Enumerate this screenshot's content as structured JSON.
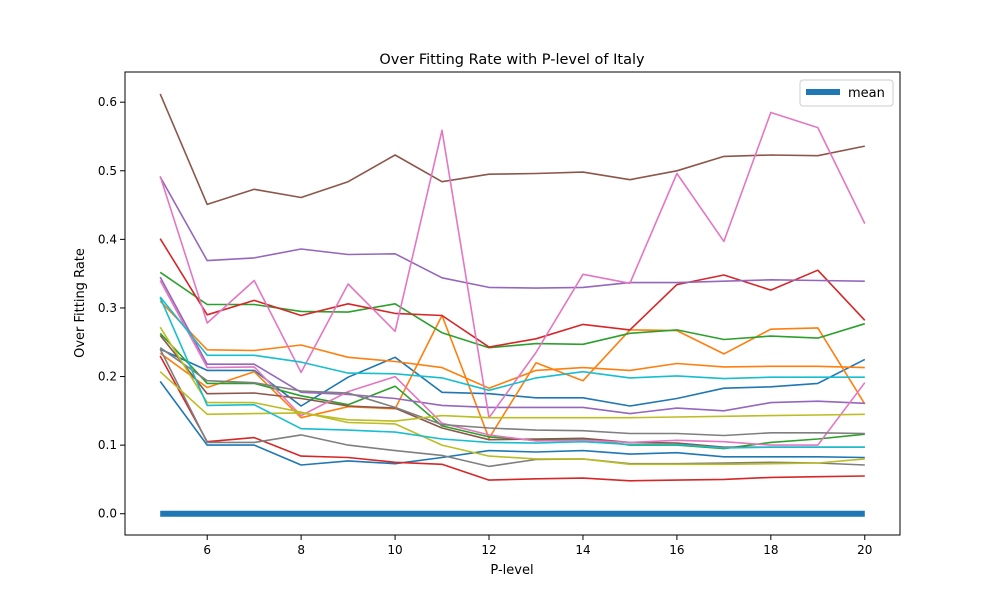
{
  "chart_data": {
    "type": "line",
    "title": "Over Fitting Rate with P-level of Italy",
    "xlabel": "P-level",
    "ylabel": "Over Fitting Rate",
    "xlim": [
      4.25,
      20.75
    ],
    "ylim": [
      -0.031,
      0.644
    ],
    "xticks": [
      6,
      8,
      10,
      12,
      14,
      16,
      18,
      20
    ],
    "yticks": [
      0.0,
      0.1,
      0.2,
      0.3,
      0.4,
      0.5,
      0.6
    ],
    "ytick_labels": [
      "0.0",
      "0.1",
      "0.2",
      "0.3",
      "0.4",
      "0.5",
      "0.6"
    ],
    "grid": false,
    "legend_position": "top-right",
    "x": [
      5,
      6,
      7,
      8,
      9,
      10,
      11,
      12,
      13,
      14,
      15,
      16,
      17,
      18,
      19,
      20
    ],
    "series": [
      {
        "color": "#1f77b4",
        "values": [
          0.24,
          0.209,
          0.209,
          0.157,
          0.199,
          0.228,
          0.177,
          0.175,
          0.169,
          0.169,
          0.157,
          0.168,
          0.183,
          0.185,
          0.19,
          0.225
        ]
      },
      {
        "color": "#1f77b4",
        "values": [
          0.193,
          0.1,
          0.1,
          0.071,
          0.077,
          0.073,
          0.082,
          0.092,
          0.09,
          0.092,
          0.087,
          0.089,
          0.083,
          0.083,
          0.083,
          0.082
        ]
      },
      {
        "color": "#ff7f0e",
        "values": [
          0.31,
          0.239,
          0.238,
          0.246,
          0.228,
          0.222,
          0.213,
          0.183,
          0.209,
          0.213,
          0.209,
          0.219,
          0.214,
          0.215,
          0.215,
          0.213
        ]
      },
      {
        "color": "#ff7f0e",
        "values": [
          0.234,
          0.184,
          0.207,
          0.14,
          0.156,
          0.153,
          0.289,
          0.11,
          0.22,
          0.194,
          0.268,
          0.267,
          0.233,
          0.269,
          0.271,
          0.16
        ]
      },
      {
        "color": "#2ca02c",
        "values": [
          0.352,
          0.305,
          0.305,
          0.295,
          0.294,
          0.306,
          0.264,
          0.242,
          0.248,
          0.247,
          0.263,
          0.268,
          0.254,
          0.259,
          0.256,
          0.277
        ]
      },
      {
        "color": "#2ca02c",
        "values": [
          0.263,
          0.19,
          0.19,
          0.172,
          0.159,
          0.186,
          0.128,
          0.112,
          0.107,
          0.109,
          0.1,
          0.1,
          0.095,
          0.104,
          0.109,
          0.116
        ]
      },
      {
        "color": "#d62728",
        "values": [
          0.401,
          0.29,
          0.311,
          0.289,
          0.306,
          0.292,
          0.289,
          0.243,
          0.255,
          0.276,
          0.268,
          0.334,
          0.348,
          0.326,
          0.355,
          0.282
        ]
      },
      {
        "color": "#d62728",
        "values": [
          0.23,
          0.105,
          0.111,
          0.084,
          0.082,
          0.075,
          0.072,
          0.049,
          0.051,
          0.052,
          0.048,
          0.049,
          0.05,
          0.053,
          0.054,
          0.055
        ]
      },
      {
        "color": "#9467bd",
        "values": [
          0.491,
          0.369,
          0.373,
          0.386,
          0.378,
          0.379,
          0.344,
          0.33,
          0.329,
          0.33,
          0.337,
          0.337,
          0.339,
          0.341,
          0.34,
          0.339
        ]
      },
      {
        "color": "#9467bd",
        "values": [
          0.345,
          0.218,
          0.218,
          0.177,
          0.174,
          0.168,
          0.158,
          0.155,
          0.155,
          0.155,
          0.146,
          0.154,
          0.15,
          0.162,
          0.164,
          0.161
        ]
      },
      {
        "color": "#8c564b",
        "values": [
          0.612,
          0.451,
          0.473,
          0.461,
          0.484,
          0.523,
          0.484,
          0.495,
          0.496,
          0.498,
          0.487,
          0.5,
          0.521,
          0.523,
          0.522,
          0.536
        ]
      },
      {
        "color": "#8c564b",
        "values": [
          0.26,
          0.175,
          0.176,
          0.168,
          0.157,
          0.154,
          0.125,
          0.108,
          0.109,
          0.11,
          0.104,
          0.103,
          0.097,
          0.097,
          0.097,
          0.097
        ]
      },
      {
        "color": "#e377c2",
        "values": [
          0.492,
          0.278,
          0.34,
          0.206,
          0.335,
          0.266,
          0.559,
          0.14,
          0.235,
          0.349,
          0.336,
          0.496,
          0.397,
          0.585,
          0.563,
          0.423
        ]
      },
      {
        "color": "#e377c2",
        "values": [
          0.34,
          0.213,
          0.214,
          0.143,
          0.178,
          0.2,
          0.132,
          0.115,
          0.106,
          0.107,
          0.104,
          0.107,
          0.105,
          0.1,
          0.1,
          0.191
        ]
      },
      {
        "color": "#7f7f7f",
        "values": [
          0.242,
          0.194,
          0.191,
          0.179,
          0.176,
          0.155,
          0.13,
          0.125,
          0.122,
          0.121,
          0.117,
          0.117,
          0.114,
          0.118,
          0.118,
          0.117
        ]
      },
      {
        "color": "#7f7f7f",
        "values": [
          0.24,
          0.104,
          0.104,
          0.115,
          0.1,
          0.092,
          0.085,
          0.069,
          0.079,
          0.08,
          0.073,
          0.073,
          0.074,
          0.075,
          0.074,
          0.071
        ]
      },
      {
        "color": "#bcbd22",
        "values": [
          0.272,
          0.162,
          0.162,
          0.148,
          0.133,
          0.131,
          0.1,
          0.084,
          0.08,
          0.08,
          0.072,
          0.072,
          0.072,
          0.073,
          0.074,
          0.08
        ]
      },
      {
        "color": "#bcbd22",
        "values": [
          0.207,
          0.145,
          0.146,
          0.147,
          0.137,
          0.135,
          0.143,
          0.14,
          0.14,
          0.14,
          0.14,
          0.141,
          0.142,
          0.143,
          0.144,
          0.145
        ]
      },
      {
        "color": "#17becf",
        "values": [
          0.316,
          0.231,
          0.231,
          0.221,
          0.205,
          0.204,
          0.198,
          0.18,
          0.198,
          0.207,
          0.198,
          0.201,
          0.197,
          0.199,
          0.199,
          0.199
        ]
      },
      {
        "color": "#17becf",
        "values": [
          0.315,
          0.158,
          0.159,
          0.124,
          0.122,
          0.119,
          0.109,
          0.104,
          0.103,
          0.105,
          0.101,
          0.101,
          0.096,
          0.097,
          0.097,
          0.097
        ]
      }
    ],
    "mean_series": {
      "name": "mean",
      "color": "#1f77b4",
      "values": [
        0.0,
        0.0,
        0.0,
        0.0,
        0.0,
        0.0,
        0.0,
        0.0,
        0.0,
        0.0,
        0.0,
        0.0,
        0.0,
        0.0,
        0.0,
        0.0
      ]
    }
  }
}
